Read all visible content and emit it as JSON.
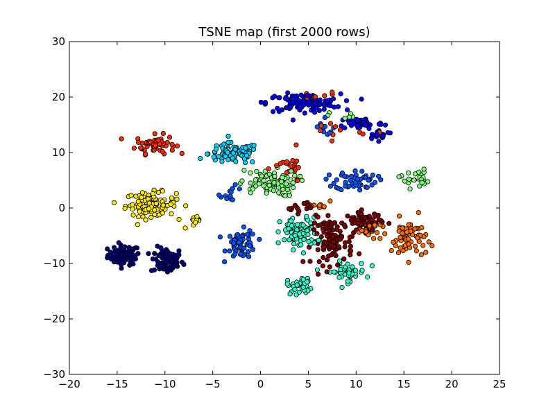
{
  "chart_data": {
    "type": "scatter",
    "title": "TSNE map (first 2000 rows)",
    "xlabel": "",
    "ylabel": "",
    "xlim": [
      -20,
      25
    ],
    "ylim": [
      -30,
      30
    ],
    "xticks": [
      -20,
      -15,
      -10,
      -5,
      0,
      5,
      10,
      15,
      20,
      25
    ],
    "yticks": [
      -30,
      -20,
      -10,
      0,
      10,
      20,
      30
    ],
    "grid": false,
    "legend": "none",
    "point_style": {
      "edge_color": "#000000",
      "colormap": "jet"
    },
    "clusters": [
      {
        "color": "#00007f",
        "center": [
          -14.3,
          -8.5
        ],
        "spread": [
          1.4,
          1.5
        ],
        "count": 75
      },
      {
        "color": "#00007f",
        "center": [
          -9.8,
          -9.5
        ],
        "spread": [
          1.4,
          2.0
        ],
        "count": 80
      },
      {
        "color": "#ff2a00",
        "center": [
          -11.0,
          11.5
        ],
        "spread": [
          1.7,
          1.4
        ],
        "count": 55
      },
      {
        "color": "#ffea00",
        "center": [
          -11.5,
          0.7
        ],
        "spread": [
          2.2,
          1.8
        ],
        "count": 110
      },
      {
        "color": "#ffea00",
        "center": [
          -6.8,
          -2.6
        ],
        "spread": [
          0.9,
          0.9
        ],
        "count": 12
      },
      {
        "color": "#00d4ff",
        "center": [
          -2.8,
          9.8
        ],
        "spread": [
          2.2,
          1.6
        ],
        "count": 90
      },
      {
        "color": "#0055ff",
        "center": [
          -2.0,
          -6.5
        ],
        "spread": [
          1.3,
          2.1
        ],
        "count": 60
      },
      {
        "color": "#0055ff",
        "center": [
          -3.0,
          2.5
        ],
        "spread": [
          1.0,
          1.2
        ],
        "count": 12
      },
      {
        "color": "#0000ff",
        "center": [
          4.5,
          19.0
        ],
        "spread": [
          3.2,
          1.3
        ],
        "count": 110
      },
      {
        "color": "#0000ff",
        "center": [
          10.5,
          15.3
        ],
        "spread": [
          2.0,
          0.9
        ],
        "count": 50
      },
      {
        "color": "#0000ff",
        "center": [
          12.5,
          13.2
        ],
        "spread": [
          1.2,
          0.7
        ],
        "count": 20
      },
      {
        "color": "#0055ff",
        "center": [
          10.0,
          5.0
        ],
        "spread": [
          1.8,
          1.5
        ],
        "count": 55
      },
      {
        "color": "#7dff7a",
        "center": [
          0.8,
          4.5
        ],
        "spread": [
          2.5,
          2.0
        ],
        "count": 85
      },
      {
        "color": "#7dff7a",
        "center": [
          16.0,
          5.3
        ],
        "spread": [
          1.3,
          1.4
        ],
        "count": 25
      },
      {
        "color": "#7dff7a",
        "center": [
          9.0,
          16.5
        ],
        "spread": [
          1.5,
          0.8
        ],
        "count": 8
      },
      {
        "color": "#29ffce",
        "center": [
          4.0,
          -4.5
        ],
        "spread": [
          1.6,
          2.3
        ],
        "count": 85
      },
      {
        "color": "#29ffce",
        "center": [
          4.2,
          -14.0
        ],
        "spread": [
          1.2,
          1.3
        ],
        "count": 30
      },
      {
        "color": "#29ffce",
        "center": [
          9.0,
          -11.5
        ],
        "spread": [
          1.7,
          1.5
        ],
        "count": 45
      },
      {
        "color": "#7f0000",
        "center": [
          7.5,
          -6.0
        ],
        "spread": [
          1.8,
          3.5
        ],
        "count": 100
      },
      {
        "color": "#7f0000",
        "center": [
          10.8,
          -2.5
        ],
        "spread": [
          1.6,
          1.5
        ],
        "count": 60
      },
      {
        "color": "#7f0000",
        "center": [
          4.0,
          0.2
        ],
        "spread": [
          1.3,
          0.9
        ],
        "count": 15
      },
      {
        "color": "#ff6d00",
        "center": [
          15.5,
          -5.5
        ],
        "spread": [
          1.5,
          3.0
        ],
        "count": 65
      },
      {
        "color": "#ff6d00",
        "center": [
          11.5,
          -4.0
        ],
        "spread": [
          1.5,
          1.0
        ],
        "count": 25
      },
      {
        "color": "#ff6d00",
        "center": [
          6.5,
          0.3
        ],
        "spread": [
          0.8,
          0.7
        ],
        "count": 10
      },
      {
        "color": "#ff2a00",
        "center": [
          3.0,
          7.0
        ],
        "spread": [
          1.4,
          2.5
        ],
        "count": 25
      },
      {
        "color": "#ff2a00",
        "center": [
          5.5,
          20.0
        ],
        "spread": [
          2.0,
          0.8
        ],
        "count": 10
      },
      {
        "color": "#ff2a00",
        "center": [
          8.0,
          14.0
        ],
        "spread": [
          2.5,
          1.5
        ],
        "count": 10
      },
      {
        "color": "#0055ff",
        "center": [
          6.5,
          14.0
        ],
        "spread": [
          1.3,
          1.5
        ],
        "count": 12
      }
    ]
  }
}
